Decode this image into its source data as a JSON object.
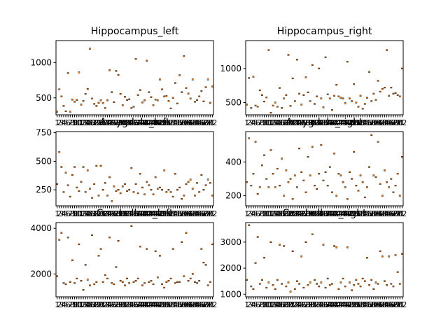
{
  "chart_data": [
    {
      "type": "box",
      "title": "Hippocampus_left",
      "ylim": [
        260,
        1310
      ],
      "yticks": [
        500,
        1000
      ],
      "ytick_labels": [
        "500",
        "1000"
      ],
      "color": "#ff7f0e",
      "n": 72,
      "values": [
        305,
        620,
        520,
        385,
        310,
        850,
        305,
        475,
        445,
        470,
        860,
        405,
        455,
        555,
        625,
        1195,
        490,
        415,
        385,
        430,
        465,
        425,
        355,
        465,
        890,
        580,
        440,
        880,
        825,
        555,
        395,
        515,
        470,
        480,
        355,
        375,
        1050,
        540,
        610,
        435,
        465,
        1025,
        580,
        510,
        395,
        475,
        465,
        760,
        620,
        520,
        525,
        455,
        350,
        500,
        710,
        420,
        820,
        580,
        1090,
        640,
        560,
        490,
        760,
        445,
        470,
        520,
        595,
        450,
        650,
        760,
        430,
        660
      ]
    },
    {
      "type": "box",
      "title": "Hippocampus_right",
      "ylim": [
        320,
        1410
      ],
      "yticks": [
        500,
        1000
      ],
      "ytick_labels": [
        "500",
        "1000"
      ],
      "color": "#ff7f0e",
      "n": 72,
      "values": [
        470,
        860,
        420,
        880,
        455,
        440,
        680,
        610,
        515,
        575,
        1270,
        350,
        455,
        500,
        440,
        715,
        420,
        560,
        610,
        1200,
        450,
        855,
        520,
        1130,
        630,
        470,
        610,
        870,
        650,
        520,
        1050,
        480,
        590,
        1000,
        560,
        430,
        1165,
        620,
        560,
        390,
        600,
        760,
        590,
        570,
        560,
        490,
        1100,
        560,
        520,
        770,
        500,
        440,
        600,
        410,
        480,
        570,
        950,
        520,
        630,
        540,
        820,
        660,
        700,
        720,
        1270,
        600,
        720,
        630,
        640,
        610,
        590,
        1000
      ]
    },
    {
      "type": "box",
      "title": "Amygdala_left",
      "ylim": [
        110,
        760
      ],
      "yticks": [
        250,
        500,
        750
      ],
      "ytick_labels": [
        "250",
        "500",
        "750"
      ],
      "color": "#ff7f0e",
      "n": 72,
      "values": [
        300,
        580,
        450,
        230,
        400,
        290,
        190,
        380,
        450,
        270,
        240,
        320,
        450,
        230,
        420,
        260,
        180,
        300,
        460,
        200,
        460,
        250,
        310,
        200,
        360,
        150,
        280,
        240,
        250,
        220,
        280,
        300,
        240,
        250,
        440,
        230,
        300,
        220,
        390,
        270,
        210,
        320,
        290,
        250,
        210,
        360,
        260,
        270,
        250,
        420,
        230,
        250,
        230,
        190,
        390,
        250,
        270,
        170,
        200,
        300,
        320,
        340,
        260,
        200,
        310,
        230,
        380,
        250,
        290,
        340,
        310,
        200
      ]
    },
    {
      "type": "box",
      "title": "Amygdala_right",
      "ylim": [
        140,
        580
      ],
      "yticks": [
        200,
        400
      ],
      "ytick_labels": [
        "200",
        "400"
      ],
      "color": "#ff7f0e",
      "n": 72,
      "values": [
        280,
        540,
        260,
        330,
        520,
        210,
        250,
        380,
        440,
        300,
        250,
        470,
        330,
        250,
        360,
        260,
        420,
        200,
        350,
        280,
        300,
        180,
        320,
        250,
        480,
        340,
        290,
        220,
        430,
        320,
        490,
        260,
        240,
        330,
        500,
        290,
        340,
        260,
        370,
        220,
        450,
        200,
        330,
        320,
        280,
        250,
        180,
        340,
        300,
        460,
        260,
        230,
        320,
        280,
        190,
        250,
        370,
        560,
        320,
        310,
        520,
        270,
        200,
        350,
        280,
        250,
        300,
        220,
        260,
        330,
        200,
        430
      ]
    },
    {
      "type": "box",
      "title": "Cerebellum_left",
      "ylim": [
        1000,
        4250
      ],
      "yticks": [
        2000,
        4000
      ],
      "ytick_labels": [
        "2000",
        "4000"
      ],
      "color": "#ff7f0e",
      "n": 72,
      "values": [
        1900,
        3500,
        3800,
        1600,
        1550,
        3600,
        1650,
        2600,
        1600,
        1800,
        3300,
        1700,
        1300,
        2400,
        1750,
        1500,
        3700,
        1550,
        1650,
        2800,
        3100,
        1650,
        1950,
        1800,
        3600,
        1600,
        1550,
        2300,
        3450,
        1700,
        1650,
        1500,
        1800,
        1600,
        4100,
        1650,
        1700,
        1800,
        3200,
        1500,
        1600,
        3100,
        1650,
        1700,
        1550,
        3000,
        1850,
        2800,
        1550,
        1400,
        1650,
        1700,
        1800,
        3100,
        1600,
        1650,
        1650,
        3400,
        1900,
        3800,
        1700,
        1800,
        2000,
        1650,
        1600,
        1700,
        3100,
        2500,
        2400,
        1500,
        1650,
        3300
      ]
    },
    {
      "type": "box",
      "title": "Cerebellum_right",
      "ylim": [
        900,
        3750
      ],
      "yticks": [
        1000,
        2000,
        3000
      ],
      "ytick_labels": [
        "1000",
        "2000",
        "3000"
      ],
      "color": "#ff7f0e",
      "n": 72,
      "values": [
        1550,
        3650,
        1300,
        1200,
        2200,
        3200,
        1400,
        1550,
        2400,
        1250,
        1450,
        3000,
        1350,
        1200,
        1550,
        2900,
        1400,
        2850,
        1300,
        1450,
        1100,
        2650,
        1200,
        1500,
        1400,
        2450,
        1250,
        3000,
        1350,
        1450,
        3300,
        1550,
        1400,
        1300,
        1450,
        2900,
        1250,
        1600,
        1350,
        1400,
        2850,
        2800,
        1200,
        1450,
        1600,
        1300,
        2800,
        1450,
        1150,
        1350,
        1550,
        1400,
        1300,
        1600,
        1500,
        2400,
        1350,
        1550,
        1200,
        1450,
        1400,
        2650,
        2450,
        1500,
        1350,
        2450,
        1400,
        1300,
        2500,
        1850,
        1400,
        2550
      ]
    }
  ]
}
